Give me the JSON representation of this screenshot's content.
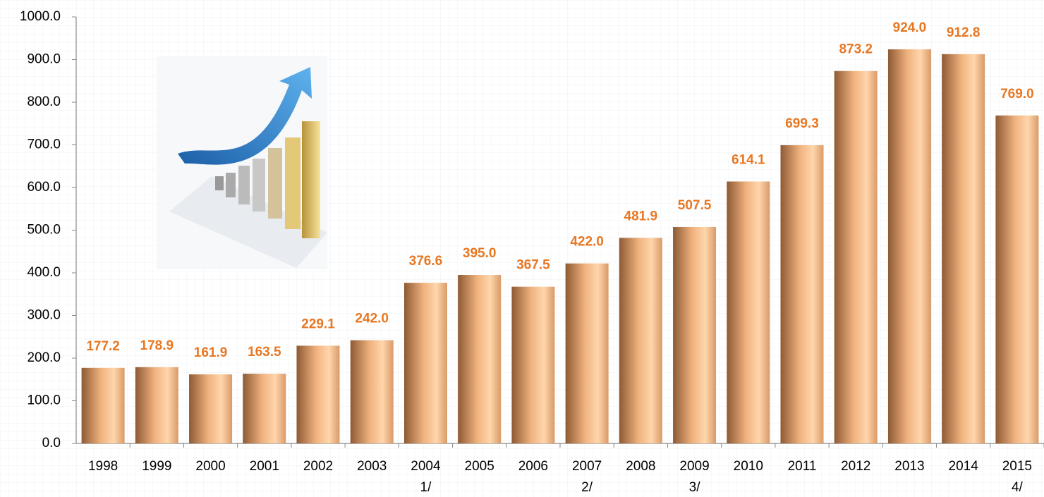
{
  "chart_data": {
    "type": "bar",
    "categories": [
      "1998",
      "1999",
      "2000",
      "2001",
      "2002",
      "2003",
      "2004",
      "2005",
      "2006",
      "2007",
      "2008",
      "2009",
      "2010",
      "2011",
      "2012",
      "2013",
      "2014",
      "2015"
    ],
    "category_notes": [
      null,
      null,
      null,
      null,
      null,
      null,
      "1/",
      null,
      null,
      "2/",
      null,
      "3/",
      null,
      null,
      null,
      null,
      null,
      "4/"
    ],
    "values": [
      177.2,
      178.9,
      161.9,
      163.5,
      229.1,
      242.0,
      376.6,
      395.0,
      367.5,
      422.0,
      481.9,
      507.5,
      614.1,
      699.3,
      873.2,
      924.0,
      912.8,
      769.0
    ],
    "value_labels": [
      "177.2",
      "178.9",
      "161.9",
      "163.5",
      "229.1",
      "242.0",
      "376.6",
      "395.0",
      "367.5",
      "422.0",
      "481.9",
      "507.5",
      "614.1",
      "699.3",
      "873.2",
      "924.0",
      "912.8",
      "769.0"
    ],
    "color": "#f0b27e",
    "value_label_color": "#e87722",
    "ylim": [
      0,
      1000
    ],
    "yticks": [
      {
        "value": 0,
        "label": "0.0"
      },
      {
        "value": 100,
        "label": "100.0"
      },
      {
        "value": 200,
        "label": "200.0"
      },
      {
        "value": 300,
        "label": "300.0"
      },
      {
        "value": 400,
        "label": "400.0"
      },
      {
        "value": 500,
        "label": "500.0"
      },
      {
        "value": 600,
        "label": "600.0"
      },
      {
        "value": 700,
        "label": "700.0"
      },
      {
        "value": 800,
        "label": "800.0"
      },
      {
        "value": 900,
        "label": "900.0"
      },
      {
        "value": 1000,
        "label": "1000.0"
      }
    ],
    "grid": false
  }
}
